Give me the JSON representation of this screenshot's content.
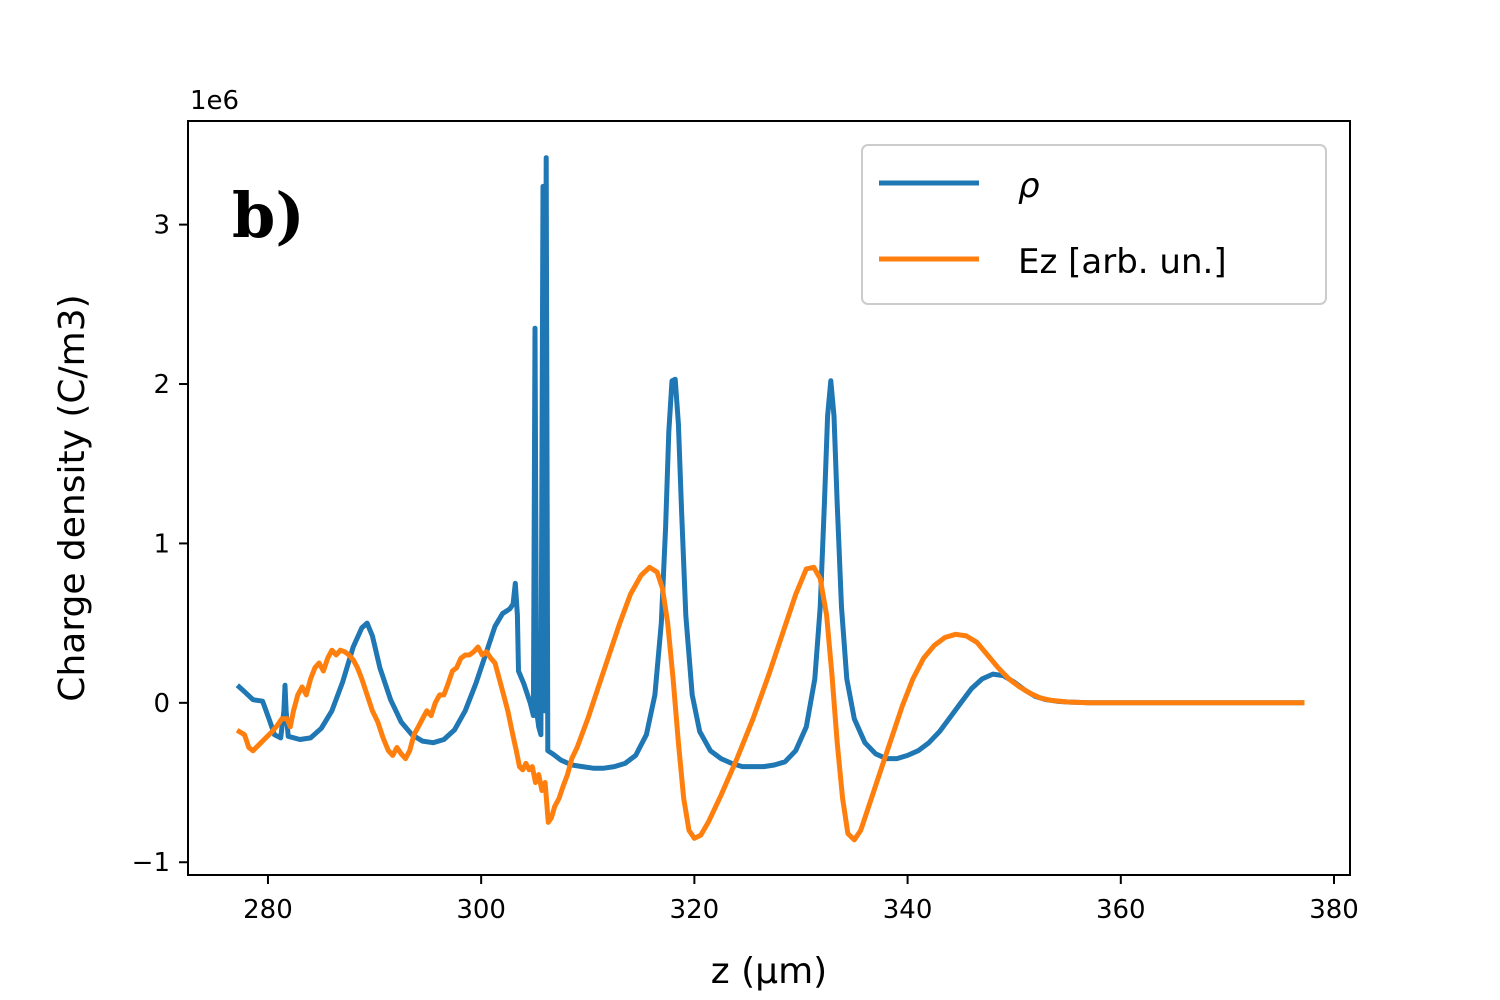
{
  "chart_data": {
    "type": "line",
    "panel_label": "b)",
    "xlabel": "z (μm)",
    "ylabel": "Charge density (C/m3)",
    "y_offset_text": "1e6",
    "y_scale": 1000000,
    "xlim": [
      272.5,
      381.5
    ],
    "ylim": [
      -1.08,
      3.65
    ],
    "xticks": [
      280,
      300,
      320,
      340,
      360,
      380
    ],
    "xtick_labels": [
      "280",
      "300",
      "320",
      "340",
      "360",
      "380"
    ],
    "yticks": [
      -1,
      0,
      1,
      2,
      3
    ],
    "ytick_labels": [
      "−1",
      "0",
      "1",
      "2",
      "3"
    ],
    "grid": false,
    "legend_position": "top-right",
    "legend": [
      {
        "label": "ρ",
        "color": "#1f77b4"
      },
      {
        "label": "Ez [arb. un.]",
        "color": "#ff7f0e"
      }
    ],
    "series": [
      {
        "name": "ρ",
        "color": "#1f77b4",
        "points": [
          [
            277.3,
            0.1
          ],
          [
            277.8,
            0.07
          ],
          [
            278.6,
            0.02
          ],
          [
            279.5,
            0.01
          ],
          [
            280.2,
            -0.12
          ],
          [
            280.6,
            -0.2
          ],
          [
            281.2,
            -0.22
          ],
          [
            281.5,
            -0.05
          ],
          [
            281.6,
            0.11
          ],
          [
            281.7,
            -0.05
          ],
          [
            281.9,
            -0.21
          ],
          [
            283.0,
            -0.23
          ],
          [
            284.0,
            -0.22
          ],
          [
            285.0,
            -0.16
          ],
          [
            286.0,
            -0.05
          ],
          [
            287.0,
            0.13
          ],
          [
            288.0,
            0.35
          ],
          [
            288.8,
            0.47
          ],
          [
            289.3,
            0.5
          ],
          [
            289.8,
            0.42
          ],
          [
            290.5,
            0.22
          ],
          [
            291.5,
            0.02
          ],
          [
            292.5,
            -0.12
          ],
          [
            293.5,
            -0.2
          ],
          [
            294.5,
            -0.24
          ],
          [
            295.5,
            -0.25
          ],
          [
            296.5,
            -0.23
          ],
          [
            297.5,
            -0.17
          ],
          [
            298.5,
            -0.05
          ],
          [
            299.5,
            0.12
          ],
          [
            300.5,
            0.32
          ],
          [
            301.3,
            0.48
          ],
          [
            302.0,
            0.56
          ],
          [
            302.7,
            0.59
          ],
          [
            303.0,
            0.62
          ],
          [
            303.2,
            0.75
          ],
          [
            303.4,
            0.55
          ],
          [
            303.5,
            0.2
          ],
          [
            304.0,
            0.12
          ],
          [
            304.6,
            0.0
          ],
          [
            304.9,
            -0.08
          ],
          [
            305.05,
            2.35
          ],
          [
            305.2,
            -0.05
          ],
          [
            305.4,
            -0.15
          ],
          [
            305.6,
            -0.2
          ],
          [
            305.8,
            3.24
          ],
          [
            305.95,
            -0.05
          ],
          [
            306.1,
            3.42
          ],
          [
            306.25,
            -0.3
          ],
          [
            306.7,
            -0.32
          ],
          [
            307.5,
            -0.36
          ],
          [
            308.5,
            -0.39
          ],
          [
            309.5,
            -0.4
          ],
          [
            310.5,
            -0.41
          ],
          [
            311.5,
            -0.41
          ],
          [
            312.5,
            -0.4
          ],
          [
            313.5,
            -0.38
          ],
          [
            314.5,
            -0.33
          ],
          [
            315.5,
            -0.2
          ],
          [
            316.3,
            0.05
          ],
          [
            316.9,
            0.5
          ],
          [
            317.3,
            1.1
          ],
          [
            317.6,
            1.7
          ],
          [
            317.9,
            2.02
          ],
          [
            318.2,
            2.03
          ],
          [
            318.5,
            1.75
          ],
          [
            318.8,
            1.2
          ],
          [
            319.2,
            0.55
          ],
          [
            319.8,
            0.05
          ],
          [
            320.5,
            -0.18
          ],
          [
            321.5,
            -0.3
          ],
          [
            322.5,
            -0.35
          ],
          [
            323.5,
            -0.38
          ],
          [
            324.5,
            -0.4
          ],
          [
            325.5,
            -0.4
          ],
          [
            326.5,
            -0.4
          ],
          [
            327.5,
            -0.39
          ],
          [
            328.5,
            -0.37
          ],
          [
            329.5,
            -0.3
          ],
          [
            330.5,
            -0.15
          ],
          [
            331.3,
            0.15
          ],
          [
            331.8,
            0.6
          ],
          [
            332.2,
            1.25
          ],
          [
            332.5,
            1.8
          ],
          [
            332.8,
            2.02
          ],
          [
            333.1,
            1.8
          ],
          [
            333.4,
            1.25
          ],
          [
            333.8,
            0.6
          ],
          [
            334.3,
            0.15
          ],
          [
            335.0,
            -0.1
          ],
          [
            336.0,
            -0.25
          ],
          [
            337.0,
            -0.32
          ],
          [
            338.0,
            -0.35
          ],
          [
            339.0,
            -0.35
          ],
          [
            340.0,
            -0.33
          ],
          [
            341.0,
            -0.3
          ],
          [
            342.0,
            -0.25
          ],
          [
            343.0,
            -0.18
          ],
          [
            344.0,
            -0.09
          ],
          [
            345.0,
            0.0
          ],
          [
            346.0,
            0.09
          ],
          [
            347.0,
            0.15
          ],
          [
            348.0,
            0.18
          ],
          [
            349.0,
            0.17
          ],
          [
            350.0,
            0.13
          ],
          [
            351.0,
            0.08
          ],
          [
            352.0,
            0.04
          ],
          [
            353.0,
            0.02
          ],
          [
            354.0,
            0.01
          ],
          [
            355.0,
            0.005
          ],
          [
            357.0,
            0.0
          ],
          [
            365.0,
            0.0
          ],
          [
            377.0,
            0.0
          ]
        ]
      },
      {
        "name": "Ez [arb. un.]",
        "color": "#ff7f0e",
        "points": [
          [
            277.3,
            -0.18
          ],
          [
            277.8,
            -0.2
          ],
          [
            278.2,
            -0.28
          ],
          [
            278.6,
            -0.3
          ],
          [
            279.2,
            -0.26
          ],
          [
            279.8,
            -0.22
          ],
          [
            280.4,
            -0.18
          ],
          [
            280.9,
            -0.14
          ],
          [
            281.3,
            -0.1
          ],
          [
            281.8,
            -0.1
          ],
          [
            282.1,
            -0.15
          ],
          [
            282.4,
            -0.05
          ],
          [
            282.8,
            0.05
          ],
          [
            283.2,
            0.1
          ],
          [
            283.6,
            0.05
          ],
          [
            284.0,
            0.15
          ],
          [
            284.4,
            0.22
          ],
          [
            284.8,
            0.25
          ],
          [
            285.2,
            0.2
          ],
          [
            285.6,
            0.28
          ],
          [
            286.0,
            0.33
          ],
          [
            286.4,
            0.3
          ],
          [
            286.8,
            0.33
          ],
          [
            287.2,
            0.32
          ],
          [
            287.6,
            0.3
          ],
          [
            288.0,
            0.27
          ],
          [
            288.4,
            0.22
          ],
          [
            288.8,
            0.15
          ],
          [
            289.3,
            0.05
          ],
          [
            289.8,
            -0.05
          ],
          [
            290.3,
            -0.12
          ],
          [
            290.8,
            -0.22
          ],
          [
            291.3,
            -0.3
          ],
          [
            291.7,
            -0.33
          ],
          [
            292.1,
            -0.28
          ],
          [
            292.5,
            -0.32
          ],
          [
            292.9,
            -0.35
          ],
          [
            293.3,
            -0.3
          ],
          [
            293.7,
            -0.2
          ],
          [
            294.1,
            -0.15
          ],
          [
            294.5,
            -0.1
          ],
          [
            294.9,
            -0.05
          ],
          [
            295.3,
            -0.08
          ],
          [
            295.7,
            0.0
          ],
          [
            296.1,
            0.05
          ],
          [
            296.5,
            0.05
          ],
          [
            296.9,
            0.12
          ],
          [
            297.3,
            0.2
          ],
          [
            297.7,
            0.22
          ],
          [
            298.1,
            0.28
          ],
          [
            298.5,
            0.3
          ],
          [
            298.9,
            0.3
          ],
          [
            299.3,
            0.32
          ],
          [
            299.7,
            0.35
          ],
          [
            300.1,
            0.3
          ],
          [
            300.5,
            0.32
          ],
          [
            300.9,
            0.28
          ],
          [
            301.3,
            0.25
          ],
          [
            301.7,
            0.15
          ],
          [
            302.1,
            0.05
          ],
          [
            302.5,
            -0.05
          ],
          [
            302.9,
            -0.18
          ],
          [
            303.3,
            -0.3
          ],
          [
            303.6,
            -0.4
          ],
          [
            303.9,
            -0.42
          ],
          [
            304.2,
            -0.38
          ],
          [
            304.5,
            -0.42
          ],
          [
            304.8,
            -0.4
          ],
          [
            305.1,
            -0.5
          ],
          [
            305.4,
            -0.45
          ],
          [
            305.7,
            -0.55
          ],
          [
            306.0,
            -0.5
          ],
          [
            306.3,
            -0.75
          ],
          [
            306.6,
            -0.72
          ],
          [
            306.9,
            -0.65
          ],
          [
            307.3,
            -0.6
          ],
          [
            307.7,
            -0.52
          ],
          [
            308.1,
            -0.45
          ],
          [
            308.5,
            -0.35
          ],
          [
            309.0,
            -0.28
          ],
          [
            310.0,
            -0.1
          ],
          [
            311.0,
            0.1
          ],
          [
            312.0,
            0.3
          ],
          [
            313.0,
            0.5
          ],
          [
            314.0,
            0.68
          ],
          [
            315.0,
            0.8
          ],
          [
            315.8,
            0.85
          ],
          [
            316.5,
            0.82
          ],
          [
            317.0,
            0.72
          ],
          [
            317.5,
            0.5
          ],
          [
            318.0,
            0.15
          ],
          [
            318.5,
            -0.25
          ],
          [
            319.0,
            -0.6
          ],
          [
            319.5,
            -0.8
          ],
          [
            320.0,
            -0.85
          ],
          [
            320.6,
            -0.83
          ],
          [
            321.3,
            -0.75
          ],
          [
            322.5,
            -0.58
          ],
          [
            324.0,
            -0.35
          ],
          [
            325.5,
            -0.1
          ],
          [
            327.0,
            0.18
          ],
          [
            328.5,
            0.48
          ],
          [
            329.5,
            0.68
          ],
          [
            330.5,
            0.84
          ],
          [
            331.2,
            0.85
          ],
          [
            331.8,
            0.78
          ],
          [
            332.4,
            0.55
          ],
          [
            332.9,
            0.18
          ],
          [
            333.4,
            -0.25
          ],
          [
            333.9,
            -0.6
          ],
          [
            334.4,
            -0.82
          ],
          [
            335.0,
            -0.86
          ],
          [
            335.6,
            -0.8
          ],
          [
            336.5,
            -0.62
          ],
          [
            337.5,
            -0.42
          ],
          [
            338.5,
            -0.22
          ],
          [
            339.5,
            -0.02
          ],
          [
            340.5,
            0.15
          ],
          [
            341.5,
            0.28
          ],
          [
            342.5,
            0.36
          ],
          [
            343.5,
            0.41
          ],
          [
            344.5,
            0.43
          ],
          [
            345.5,
            0.42
          ],
          [
            346.5,
            0.38
          ],
          [
            347.5,
            0.3
          ],
          [
            348.5,
            0.22
          ],
          [
            349.5,
            0.15
          ],
          [
            350.5,
            0.1
          ],
          [
            351.5,
            0.06
          ],
          [
            352.5,
            0.03
          ],
          [
            353.5,
            0.015
          ],
          [
            355.0,
            0.005
          ],
          [
            357.0,
            0.0
          ],
          [
            365.0,
            0.0
          ],
          [
            377.0,
            0.0
          ]
        ]
      }
    ]
  }
}
